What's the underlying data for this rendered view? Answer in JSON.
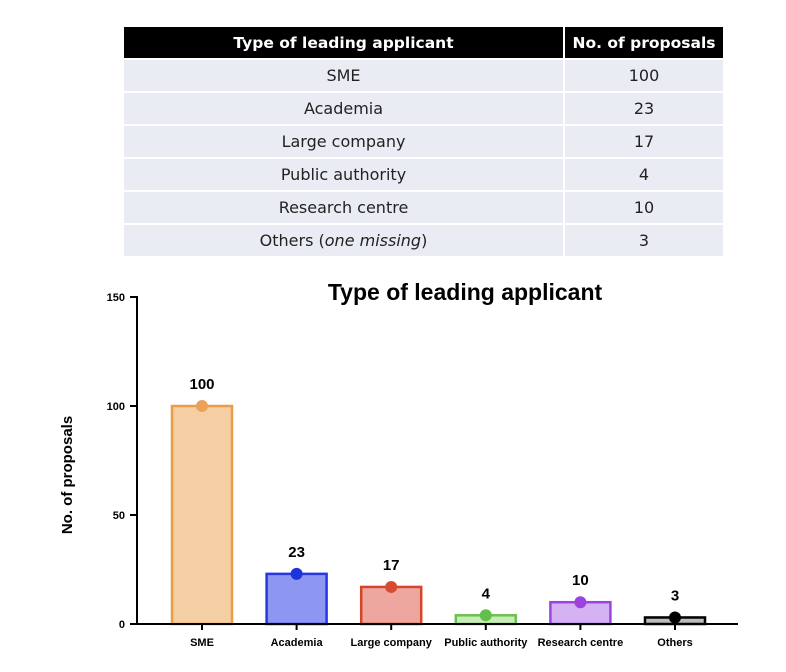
{
  "table": {
    "headers": [
      "Type of leading applicant",
      "No. of proposals"
    ],
    "rows": [
      {
        "type": "SME",
        "count": "100",
        "note": ""
      },
      {
        "type": "Academia",
        "count": "23",
        "note": ""
      },
      {
        "type": "Large company",
        "count": "17",
        "note": ""
      },
      {
        "type": "Public authority",
        "count": "4",
        "note": ""
      },
      {
        "type": "Research centre",
        "count": "10",
        "note": ""
      },
      {
        "type": "Others",
        "count": "3",
        "note": "one missing"
      }
    ]
  },
  "chart_data": {
    "type": "bar",
    "title": "Type of leading applicant",
    "xlabel": "",
    "ylabel": "No. of proposals",
    "ylim": [
      0,
      150
    ],
    "yticks": [
      0,
      50,
      100,
      150
    ],
    "categories": [
      "SME",
      "Academia",
      "Large company",
      "Public authority",
      "Research centre",
      "Others"
    ],
    "values": [
      100,
      23,
      17,
      4,
      10,
      3
    ],
    "colors": [
      {
        "fill": "#f3cfa3",
        "stroke": "#ea9d47",
        "dot": "#eba15a"
      },
      {
        "fill": "#8d97f2",
        "stroke": "#2738e2",
        "dot": "#1f33dc"
      },
      {
        "fill": "#eda79e",
        "stroke": "#d4452c",
        "dot": "#d94a33"
      },
      {
        "fill": "#c7ecb8",
        "stroke": "#6cc04f",
        "dot": "#63bf4a"
      },
      {
        "fill": "#d5b3f3",
        "stroke": "#9a45e3",
        "dot": "#9b42df"
      },
      {
        "fill": "#bcbcbc",
        "stroke": "#000000",
        "dot": "#000000"
      }
    ],
    "grid": false,
    "legend": "none"
  }
}
